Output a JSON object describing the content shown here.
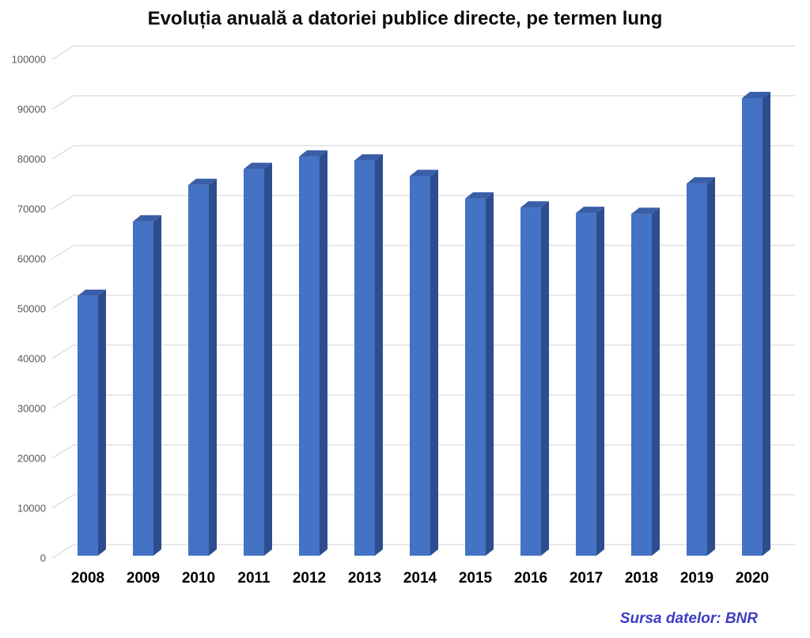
{
  "chart_data": {
    "type": "bar",
    "style": "3d-column",
    "title": "Evoluția anuală a datoriei publice directe, pe termen lung",
    "xlabel": "",
    "ylabel": "",
    "categories": [
      "2008",
      "2009",
      "2010",
      "2011",
      "2012",
      "2013",
      "2014",
      "2015",
      "2016",
      "2017",
      "2018",
      "2019",
      "2020"
    ],
    "values": [
      52000,
      66900,
      74200,
      77400,
      79900,
      79100,
      76000,
      71500,
      69700,
      68600,
      68400,
      74500,
      91600
    ],
    "ylim": [
      0,
      100000
    ],
    "ytick_step": 10000,
    "ytick_labels": [
      "0",
      "10000",
      "20000",
      "30000",
      "40000",
      "50000",
      "60000",
      "70000",
      "80000",
      "90000",
      "100000"
    ],
    "grid": true,
    "legend": false,
    "colors": {
      "bar_front": "#4472C4",
      "bar_top": "#3A5EA8",
      "bar_side": "#2D4D8F",
      "gridline": "#D9D9D9",
      "ytick_text": "#595959",
      "xtick_text": "#000000",
      "title_text": "#0d0d0d"
    }
  },
  "source_note": {
    "text": "Sursa datelor: BNR",
    "color": "#3D3DC4"
  }
}
